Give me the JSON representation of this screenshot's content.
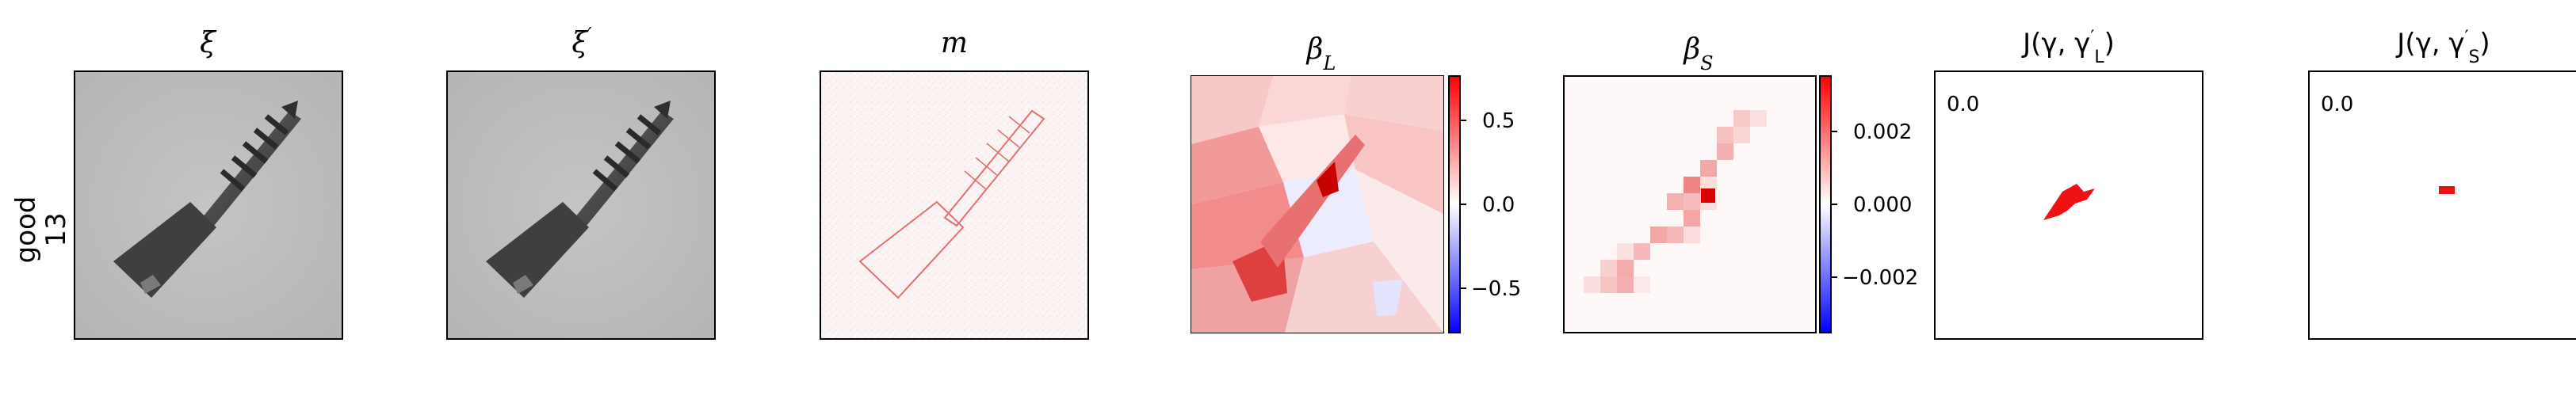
{
  "row_label": {
    "line1": "good",
    "line2": "13"
  },
  "panels": [
    {
      "id": "xi",
      "title_main": "ξ",
      "title_sup": "",
      "title_sub": ""
    },
    {
      "id": "xi-prime",
      "title_main": "ξ",
      "title_sup": "′",
      "title_sub": ""
    },
    {
      "id": "m",
      "title_main": "m",
      "title_sup": "",
      "title_sub": ""
    },
    {
      "id": "beta-l",
      "title_main": "β",
      "title_sup": "",
      "title_sub": "L"
    },
    {
      "id": "beta-s",
      "title_main": "β",
      "title_sup": "",
      "title_sub": "S"
    },
    {
      "id": "j-l",
      "title_prefix": "J(γ, γ",
      "title_sup": "′",
      "title_sub": "L",
      "title_suffix": ")",
      "corner_label": "0.0"
    },
    {
      "id": "j-s",
      "title_prefix": "J(γ, γ",
      "title_sup": "′",
      "title_sub": "S",
      "title_suffix": ")",
      "corner_label": "0.0"
    }
  ],
  "colorbars": {
    "beta_l": {
      "ticks": [
        "0.5",
        "0.0",
        "−0.5"
      ],
      "values": [
        0.5,
        0.0,
        -0.5
      ],
      "min": -0.78,
      "max": 0.78
    },
    "beta_s": {
      "ticks": [
        "0.002",
        "0.000",
        "−0.002"
      ],
      "values": [
        0.002,
        0.0,
        -0.002
      ],
      "min": -0.0037,
      "max": 0.0037
    }
  },
  "colors": {
    "positive": "#d7191c",
    "negative": "#1010d0",
    "neutral": "#ffffff",
    "frame": "#000000",
    "grayscale_bg": "#b9b9b9"
  }
}
